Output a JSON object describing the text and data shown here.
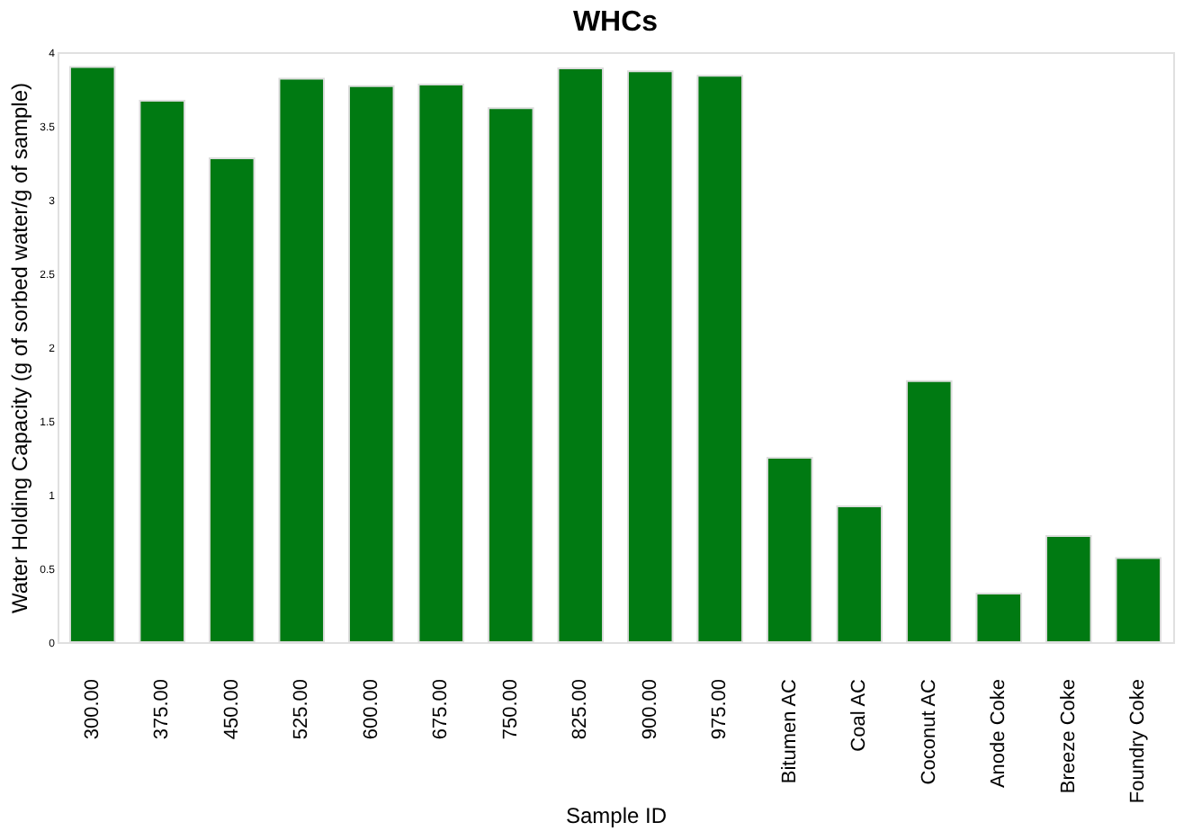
{
  "chart_data": {
    "type": "bar",
    "title": "WHCs",
    "xlabel": "Sample ID",
    "ylabel": "Water Holding Capacity (g of sorbed water/g of sample)",
    "categories": [
      "300.00",
      "375.00",
      "450.00",
      "525.00",
      "600.00",
      "675.00",
      "750.00",
      "825.00",
      "900.00",
      "975.00",
      "Bitumen AC",
      "Coal AC",
      "Coconut AC",
      "Anode Coke",
      "Breeze Coke",
      "Foundry Coke"
    ],
    "values": [
      3.9,
      3.67,
      3.28,
      3.82,
      3.77,
      3.78,
      3.62,
      3.89,
      3.87,
      3.84,
      1.25,
      0.92,
      1.77,
      0.33,
      0.72,
      0.57
    ],
    "color": "#007a12",
    "ylim": [
      0,
      4
    ],
    "yticks": [
      0,
      0.5,
      1,
      1.5,
      2,
      2.5,
      3,
      3.5,
      4
    ],
    "grid": false
  }
}
